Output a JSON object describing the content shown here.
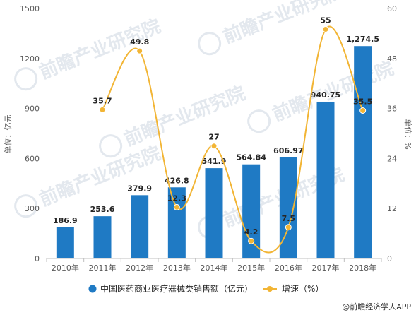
{
  "chart_data": {
    "type": "bar",
    "categories": [
      "2010年",
      "2011年",
      "2012年",
      "2013年",
      "2014年",
      "2015年",
      "2016年",
      "2017年",
      "2018年"
    ],
    "series": [
      {
        "name": "中国医药商业医疗器械类销售额（亿元）",
        "type": "bar",
        "axis": "left",
        "values": [
          186.9,
          253.6,
          379.9,
          426.8,
          541.9,
          564.84,
          606.97,
          940.75,
          1274.5
        ],
        "labels": [
          "186.9",
          "253.6",
          "379.9",
          "426.8",
          "541.9",
          "564.84",
          "606.97",
          "940.75",
          "1,274.5"
        ],
        "color": "#1f7ac4"
      },
      {
        "name": "增速（%）",
        "type": "line",
        "axis": "right",
        "values": [
          null,
          35.7,
          49.8,
          12.3,
          27,
          4.2,
          7.5,
          55,
          35.5
        ],
        "labels": [
          "",
          "35.7",
          "49.8",
          "12.3",
          "27",
          "4.2",
          "7.5",
          "55",
          "35.5"
        ],
        "color": "#f2b535"
      }
    ],
    "ylabel": "单位：亿元",
    "ylabel_right": "单位：%",
    "ylim": [
      0,
      1500
    ],
    "ylim_right": [
      0,
      60
    ],
    "yticks": [
      "0",
      "300",
      "600",
      "900",
      "1200",
      "1500"
    ],
    "yticks_right": [
      "0",
      "12",
      "24",
      "36",
      "48",
      "60"
    ],
    "grid": false,
    "legend_position": "bottom"
  },
  "watermark": "前瞻产业研究院",
  "source": "@前瞻经济学人APP",
  "colors": {
    "bar": "#1f7ac4",
    "line": "#f2b535",
    "axis": "#bfbfbf",
    "text": "#595959"
  }
}
